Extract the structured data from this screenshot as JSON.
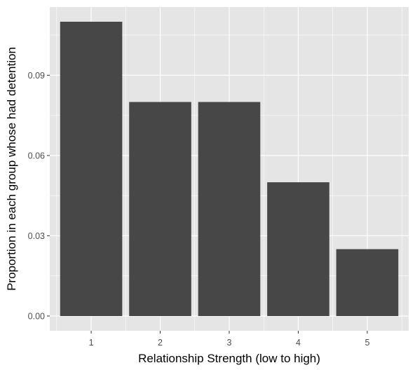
{
  "chart_data": {
    "type": "bar",
    "title": "",
    "xlabel": "Relationship Strength (low to high)",
    "ylabel": "Proportion in each group whose had detention",
    "categories": [
      "1",
      "2",
      "3",
      "4",
      "5"
    ],
    "values": [
      0.11,
      0.08,
      0.08,
      0.05,
      0.025
    ],
    "ylim": [
      -0.0055,
      0.1155
    ],
    "yticks": [
      0.0,
      0.03,
      0.06,
      0.09
    ],
    "ytick_labels": [
      "0.00",
      "0.03",
      "0.06",
      "0.09"
    ],
    "grid": true,
    "legend": "none",
    "colors": {
      "panel_background": "#e5e5e5",
      "grid_major": "#ffffff",
      "bar_fill": "#474747",
      "tick_text": "#4d4d4d",
      "tick_mark": "#333333"
    }
  }
}
